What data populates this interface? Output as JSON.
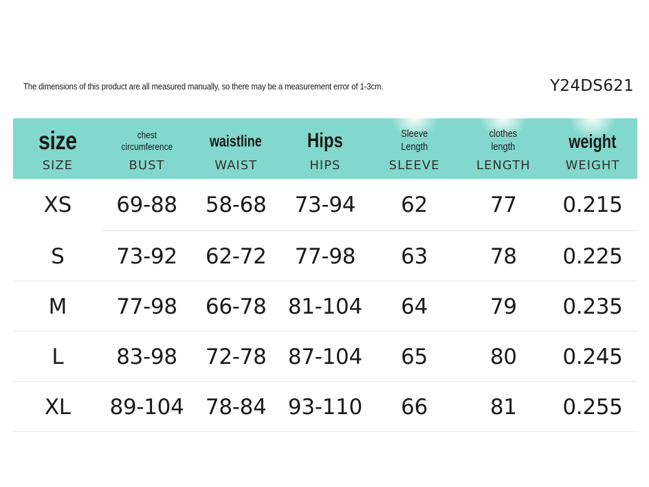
{
  "note": "The dimensions of this product are all measured manually, so there may be a measurement error of 1-3cm.",
  "product_code": "Y24DS621",
  "columns": [
    {
      "name": "size",
      "label": "SIZE"
    },
    {
      "name": "chest\ncircumference",
      "label": "BUST"
    },
    {
      "name": "waistline",
      "label": "WAIST"
    },
    {
      "name": "Hips",
      "label": "HIPS"
    },
    {
      "name": "Sleeve\nLength",
      "label": "SLEEVE"
    },
    {
      "name": "clothes\nlength",
      "label": "LENGTH"
    },
    {
      "name": "weight",
      "label": "WEIGHT"
    }
  ],
  "rows": [
    [
      "XS",
      "69-88",
      "58-68",
      "73-94",
      "62",
      "77",
      "0.215"
    ],
    [
      "S",
      "73-92",
      "62-72",
      "77-98",
      "63",
      "78",
      "0.225"
    ],
    [
      "M",
      "77-98",
      "66-78",
      "81-104",
      "64",
      "79",
      "0.235"
    ],
    [
      "L",
      "83-98",
      "72-78",
      "87-104",
      "65",
      "80",
      "0.245"
    ],
    [
      "XL",
      "89-104",
      "78-84",
      "93-110",
      "66",
      "81",
      "0.255"
    ]
  ],
  "colors": {
    "header_bg": "#82d8cc",
    "text": "#1a1a1a",
    "divider": "#e6e6e6"
  }
}
